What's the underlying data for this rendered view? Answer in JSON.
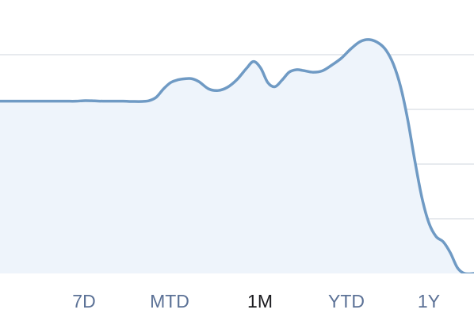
{
  "colors": {
    "line": "#6f9ac4",
    "fill": "#eef4fb",
    "grid": "#dfe3e9",
    "tab_text": "#5b7196",
    "tab_active_text": "#1b1b1f"
  },
  "range_tabs": [
    {
      "label": "7D",
      "active": false
    },
    {
      "label": "MTD",
      "active": false
    },
    {
      "label": "1M",
      "active": true
    },
    {
      "label": "YTD",
      "active": false
    },
    {
      "label": "1Y",
      "active": false
    }
  ],
  "chart_data": {
    "type": "area",
    "title": "",
    "xlabel": "",
    "ylabel": "",
    "grid": true,
    "ylim": [
      0,
      100
    ],
    "gridlines": [
      20,
      40,
      60,
      80
    ],
    "x": [
      0,
      2,
      4,
      6,
      8,
      10,
      12,
      14,
      16,
      18,
      20,
      22,
      24,
      26,
      28,
      30,
      31.5,
      33,
      34.5,
      36,
      37.5,
      39,
      40.5,
      42,
      44,
      46,
      48,
      50,
      52,
      53.5,
      55,
      56.5,
      58,
      59.5,
      61,
      62.5,
      64,
      66,
      68,
      70,
      72,
      74,
      76,
      78,
      80,
      81.5,
      83,
      84.5,
      86,
      87.5,
      89,
      90.5,
      92,
      93.5,
      95,
      96.5,
      98,
      100
    ],
    "values": [
      63,
      63,
      63,
      63,
      63,
      63,
      63,
      63,
      63,
      63.2,
      63.1,
      63,
      63,
      63,
      62.9,
      62.9,
      63.2,
      64.5,
      67.5,
      69.8,
      70.8,
      71.2,
      71.2,
      70.1,
      67.5,
      66.9,
      68.1,
      70.9,
      75,
      77.5,
      75.1,
      69.8,
      68.3,
      70.7,
      73.6,
      74.5,
      74.2,
      73.6,
      74.1,
      76.2,
      78.7,
      82.1,
      84.8,
      85.5,
      84.1,
      81.5,
      76.5,
      68.4,
      56.4,
      41.4,
      27.8,
      18.4,
      13.5,
      11.6,
      7.6,
      2.1,
      0,
      0
    ]
  }
}
